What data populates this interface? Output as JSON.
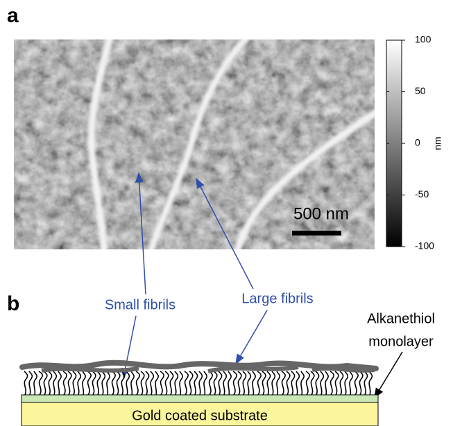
{
  "panel_a": {
    "label": "a",
    "scale_bar": "500 nm",
    "colorbar": {
      "unit": "nm",
      "range": [
        -100,
        100
      ],
      "ticks": [
        100,
        50,
        0,
        -50,
        -100
      ]
    }
  },
  "panel_b": {
    "label": "b",
    "small_fibrils": "Small fibrils",
    "large_fibrils": "Large fibrils",
    "monolayer": [
      "Alkanethiol",
      "monolayer"
    ],
    "substrate": "Gold coated substrate"
  }
}
